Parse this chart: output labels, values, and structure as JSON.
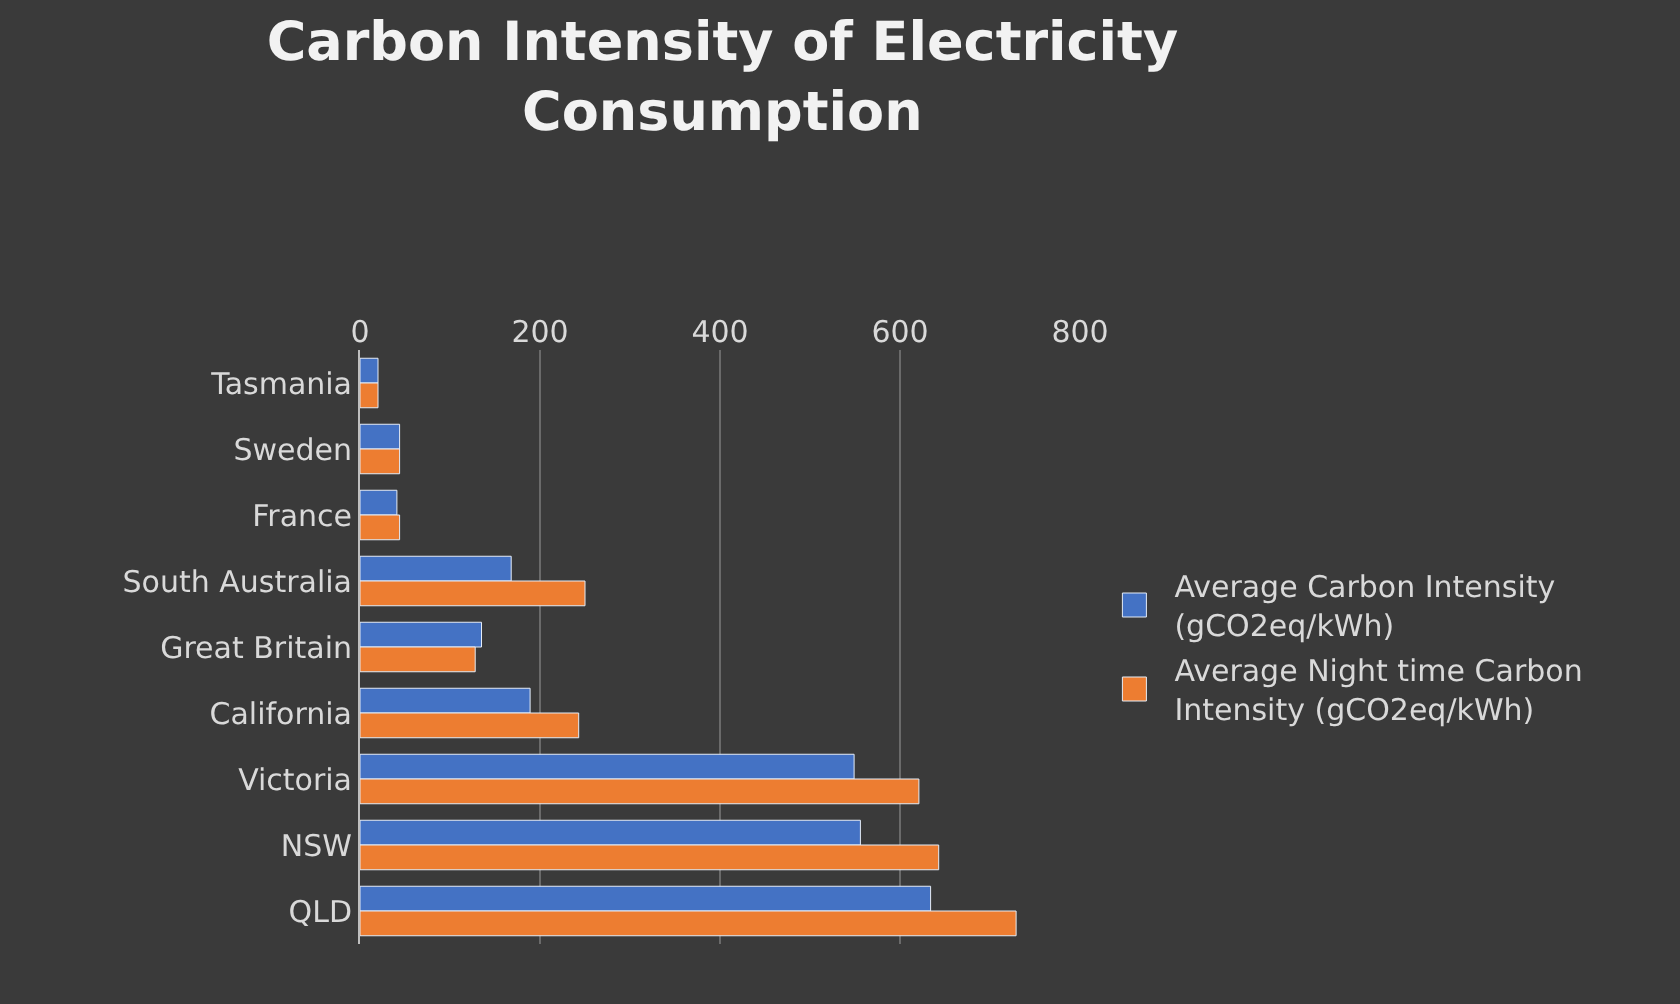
{
  "chart_data": {
    "type": "bar",
    "orientation": "horizontal",
    "title": "Carbon Intensity of Electricity Consumption",
    "categories": [
      "Tasmania",
      "Sweden",
      "France",
      "South Australia",
      "Great Britain",
      "California",
      "Victoria",
      "NSW",
      "QLD"
    ],
    "series": [
      {
        "name": "Average Carbon Intensity (gCO2eq/kWh)",
        "color": "#4472c4",
        "values": [
          20,
          44,
          41,
          168,
          135,
          189,
          549,
          556,
          634
        ]
      },
      {
        "name": "Average Night time Carbon Intensity (gCO2eq/kWh)",
        "color": "#ed7d31",
        "values": [
          20,
          44,
          44,
          250,
          128,
          243,
          621,
          643,
          729
        ]
      }
    ],
    "xlim": [
      0,
      800
    ],
    "xticks": [
      0,
      200,
      400,
      600,
      800
    ],
    "grid": "x",
    "legend": "right"
  }
}
